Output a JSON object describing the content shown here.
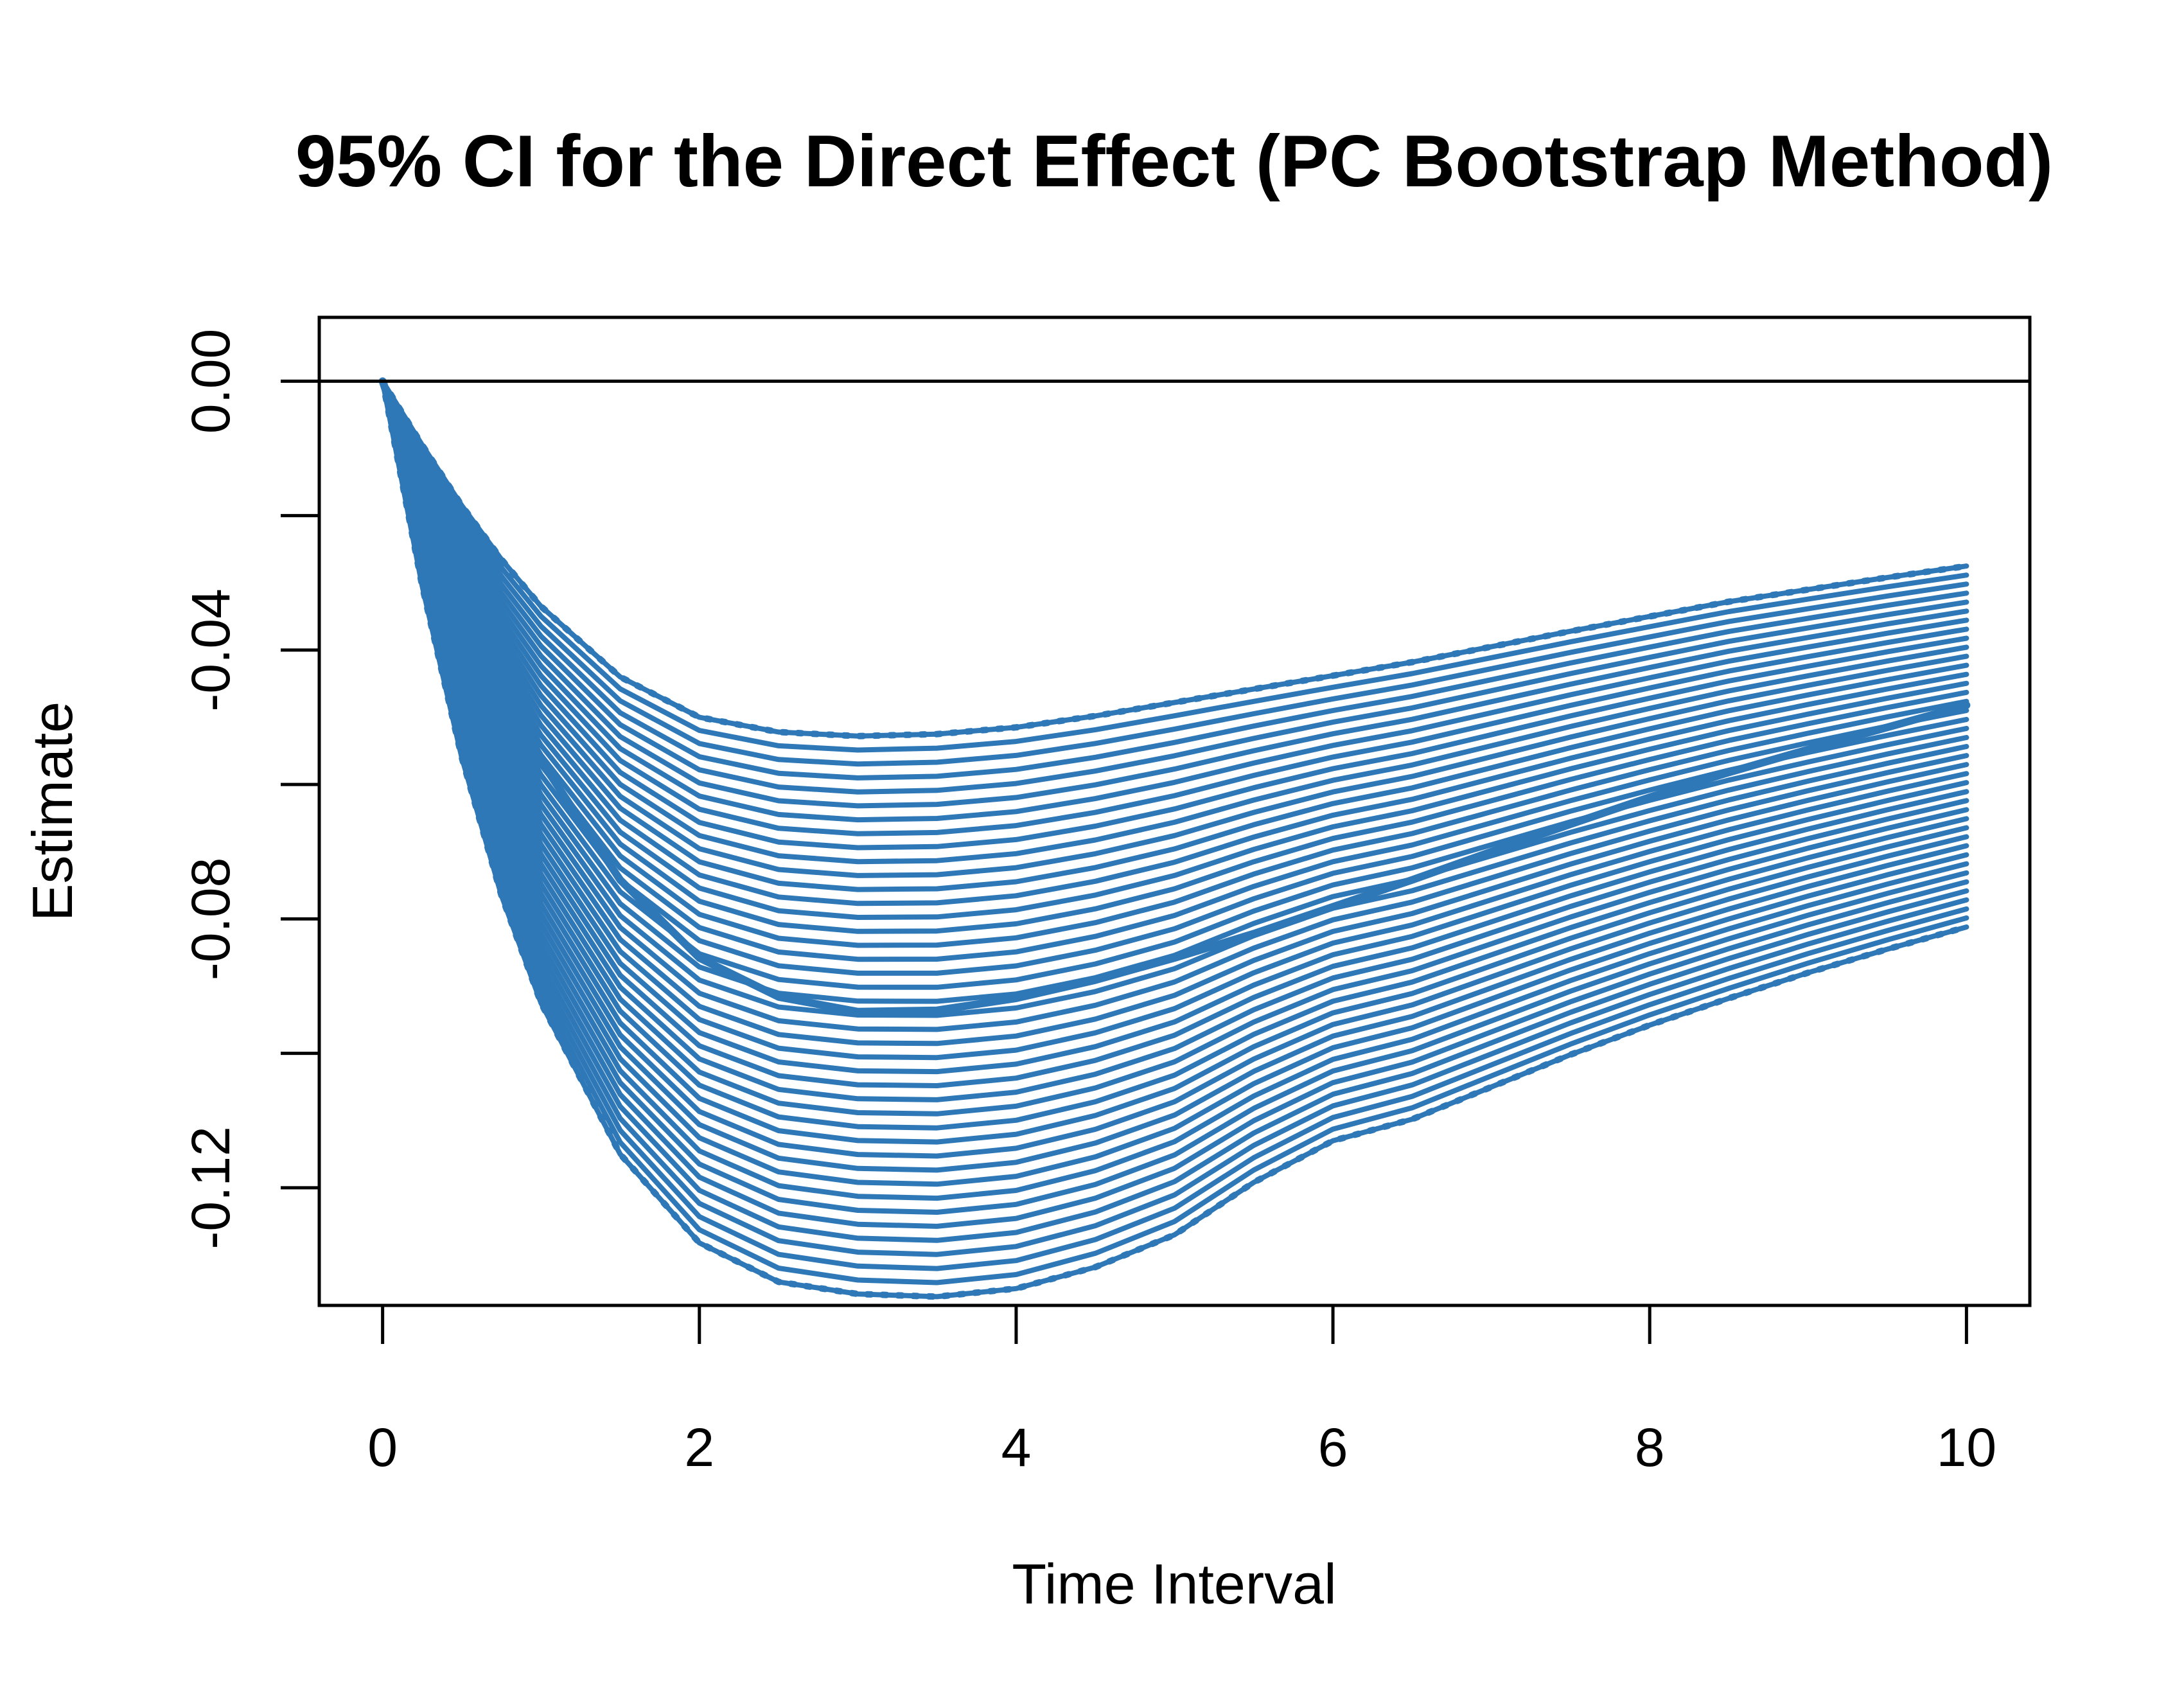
{
  "chart_data": {
    "type": "line",
    "title": "95% CI for the Direct Effect (PC Bootstrap Method)",
    "xlabel": "Time Interval",
    "ylabel": "Estimate",
    "xlim": [
      -0.4,
      10.4
    ],
    "ylim": [
      -0.1375,
      0.0095
    ],
    "x_ticks": [
      0,
      2,
      4,
      6,
      8,
      10
    ],
    "x_tick_labels": [
      "0",
      "2",
      "4",
      "6",
      "8",
      "10"
    ],
    "y_ticks": [
      0.0,
      -0.02,
      -0.04,
      -0.06,
      -0.08,
      -0.1,
      -0.12
    ],
    "y_tick_labels": [
      "0.00",
      "",
      "-0.04",
      "",
      "-0.08",
      "",
      "-0.12"
    ],
    "reference_line": 0,
    "grid": false,
    "line_color": "#2f78b7",
    "x": [
      0,
      0.25,
      0.5,
      0.75,
      1,
      1.5,
      2,
      2.5,
      3,
      3.5,
      4,
      4.5,
      5,
      5.5,
      6,
      6.5,
      7,
      7.5,
      8,
      8.5,
      9,
      9.5,
      10
    ],
    "series": [
      {
        "role": "estimate",
        "style": "solid",
        "values": [
          0,
          -0.0175,
          -0.0325,
          -0.0455,
          -0.0565,
          -0.0742,
          -0.0858,
          -0.0916,
          -0.0938,
          -0.0936,
          -0.0918,
          -0.0891,
          -0.0858,
          -0.0822,
          -0.0782,
          -0.0742,
          -0.07,
          -0.0659,
          -0.0619,
          -0.0582,
          -0.0548,
          -0.0515,
          -0.0482
        ]
      },
      {
        "role": "ci-lower",
        "style": "dotted",
        "values": [
          0,
          -0.0305,
          -0.056,
          -0.0765,
          -0.0925,
          -0.115,
          -0.1282,
          -0.134,
          -0.1358,
          -0.1362,
          -0.135,
          -0.1318,
          -0.127,
          -0.1192,
          -0.113,
          -0.1098,
          -0.105,
          -0.1002,
          -0.0958,
          -0.0918,
          -0.088,
          -0.0845,
          -0.0812
        ]
      },
      {
        "role": "ci-upper",
        "style": "dotted",
        "values": [
          0,
          -0.0095,
          -0.0185,
          -0.0265,
          -0.0335,
          -0.044,
          -0.05,
          -0.0522,
          -0.0528,
          -0.0525,
          -0.0515,
          -0.0498,
          -0.0478,
          -0.0458,
          -0.0438,
          -0.0418,
          -0.0395,
          -0.0372,
          -0.035,
          -0.0328,
          -0.031,
          -0.0292,
          -0.0275
        ]
      }
    ],
    "bootstrap_band_lines": 40
  }
}
